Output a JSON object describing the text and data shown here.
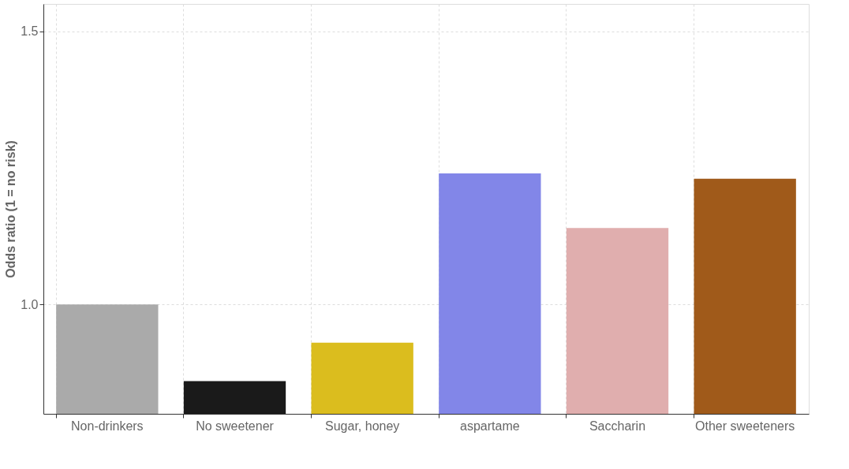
{
  "chart_data": {
    "type": "bar",
    "ylabel": "Odds ratio (1 = no risk)",
    "categories": [
      "Non-drinkers",
      "No sweetener",
      "Sugar, honey",
      "aspartame",
      "Saccharin",
      "Other sweeteners"
    ],
    "values": [
      1.0,
      0.86,
      0.93,
      1.24,
      1.14,
      1.23
    ],
    "colors": [
      "#aaaaaa",
      "#1a1a1a",
      "#dbbd1e",
      "#8286e8",
      "#e0aeae",
      "#a05a1a"
    ],
    "ylim": [
      0.8,
      1.55
    ],
    "yticks": [
      {
        "value": 1.0,
        "label": "1.0"
      },
      {
        "value": 1.5,
        "label": "1.5"
      }
    ],
    "grid": true
  }
}
